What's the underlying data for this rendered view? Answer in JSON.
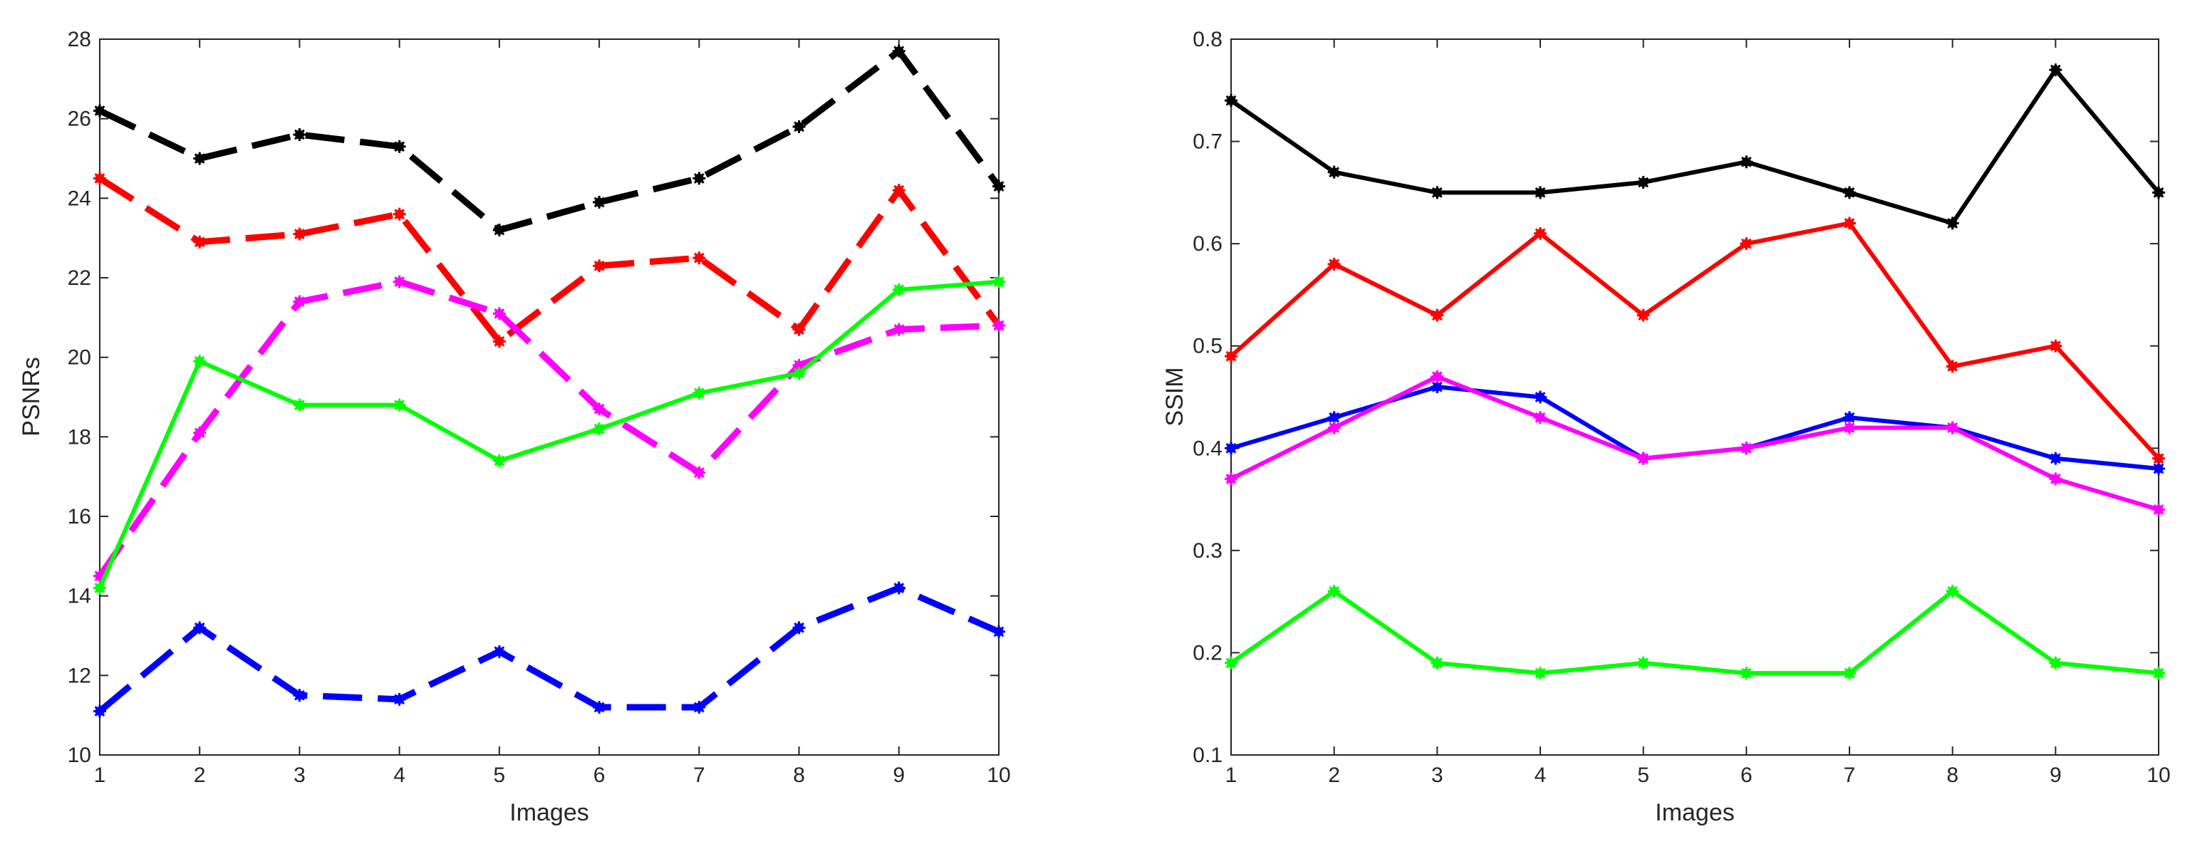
{
  "chart_data": [
    {
      "type": "line",
      "xlabel": "Images",
      "ylabel": "PSNRs",
      "x": [
        1,
        2,
        3,
        4,
        5,
        6,
        7,
        8,
        9,
        10
      ],
      "xlim": [
        1,
        10
      ],
      "ylim": [
        10,
        28
      ],
      "xticks": [
        1,
        2,
        3,
        4,
        5,
        6,
        7,
        8,
        9,
        10
      ],
      "yticks": [
        10,
        12,
        14,
        16,
        18,
        20,
        22,
        24,
        26,
        28
      ],
      "grid": false,
      "series": [
        {
          "name": "black",
          "color": "#000000",
          "style": "dashed",
          "values": [
            26.2,
            25.0,
            25.6,
            25.3,
            23.2,
            23.9,
            24.5,
            25.8,
            27.7,
            24.3
          ]
        },
        {
          "name": "red",
          "color": "#ff0000",
          "style": "dashed",
          "values": [
            24.5,
            22.9,
            23.1,
            23.6,
            20.4,
            22.3,
            22.5,
            20.7,
            24.2,
            20.8
          ]
        },
        {
          "name": "magenta",
          "color": "#ff00ff",
          "style": "dashed",
          "values": [
            14.5,
            18.1,
            21.4,
            21.9,
            21.1,
            18.7,
            17.1,
            19.8,
            20.7,
            20.8
          ]
        },
        {
          "name": "green",
          "color": "#00ff00",
          "style": "solid",
          "values": [
            14.2,
            19.9,
            18.8,
            18.8,
            17.4,
            18.2,
            19.1,
            19.6,
            21.7,
            21.9
          ]
        },
        {
          "name": "blue",
          "color": "#0000ff",
          "style": "dashed",
          "values": [
            11.1,
            13.2,
            11.5,
            11.4,
            12.6,
            11.2,
            11.2,
            13.2,
            14.2,
            13.1
          ]
        }
      ]
    },
    {
      "type": "line",
      "xlabel": "Images",
      "ylabel": "SSIM",
      "x": [
        1,
        2,
        3,
        4,
        5,
        6,
        7,
        8,
        9,
        10
      ],
      "xlim": [
        1,
        10
      ],
      "ylim": [
        0.1,
        0.8
      ],
      "xticks": [
        1,
        2,
        3,
        4,
        5,
        6,
        7,
        8,
        9,
        10
      ],
      "yticks": [
        0.1,
        0.2,
        0.3,
        0.4,
        0.5,
        0.6,
        0.7,
        0.8
      ],
      "grid": false,
      "series": [
        {
          "name": "black",
          "color": "#000000",
          "style": "solid",
          "values": [
            0.74,
            0.67,
            0.65,
            0.65,
            0.66,
            0.68,
            0.65,
            0.62,
            0.77,
            0.65
          ]
        },
        {
          "name": "red",
          "color": "#ff0000",
          "style": "solid",
          "values": [
            0.49,
            0.58,
            0.53,
            0.61,
            0.53,
            0.6,
            0.62,
            0.48,
            0.5,
            0.39
          ]
        },
        {
          "name": "blue",
          "color": "#0000ff",
          "style": "solid",
          "values": [
            0.4,
            0.43,
            0.46,
            0.45,
            0.39,
            0.4,
            0.43,
            0.42,
            0.39,
            0.38
          ]
        },
        {
          "name": "magenta",
          "color": "#ff00ff",
          "style": "solid",
          "values": [
            0.37,
            0.42,
            0.47,
            0.43,
            0.39,
            0.4,
            0.42,
            0.42,
            0.37,
            0.34
          ]
        },
        {
          "name": "green",
          "color": "#00ff00",
          "style": "solid",
          "values": [
            0.19,
            0.26,
            0.19,
            0.18,
            0.19,
            0.18,
            0.18,
            0.26,
            0.19,
            0.18
          ]
        }
      ]
    }
  ]
}
